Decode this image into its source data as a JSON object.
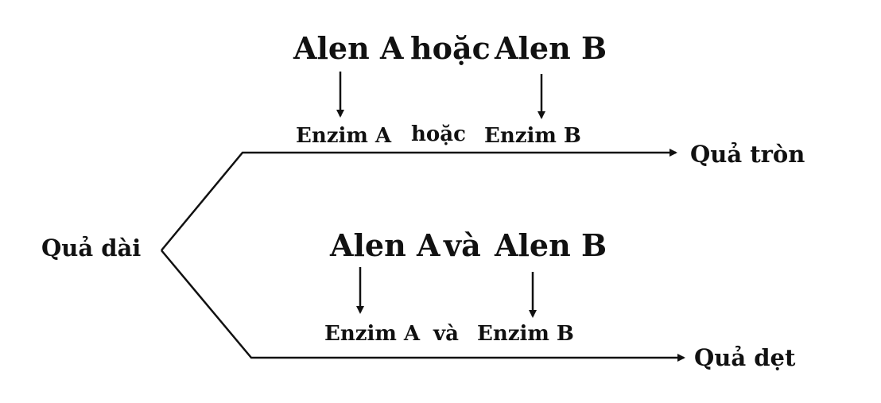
{
  "diagram": {
    "start_node": "Quả dài",
    "upper_path": {
      "alleles": {
        "a": "Alen A",
        "connector": "hoặc",
        "b": "Alen B"
      },
      "enzymes": {
        "a": "Enzim A",
        "connector": "hoặc",
        "b": "Enzim B"
      },
      "result": "Quả tròn"
    },
    "lower_path": {
      "alleles": {
        "a": "Alen A",
        "connector": "và",
        "b": "Alen B"
      },
      "enzymes": {
        "a": "Enzim A",
        "connector": "và",
        "b": "Enzim B"
      },
      "result": "Quả dẹt"
    },
    "line_color": "#111111"
  }
}
